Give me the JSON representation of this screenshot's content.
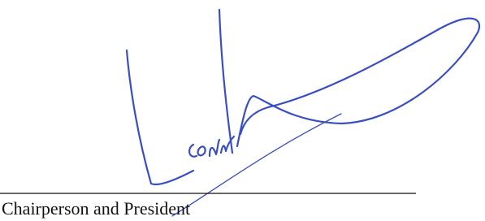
{
  "signature_block": {
    "title": "Chairperson and President"
  }
}
